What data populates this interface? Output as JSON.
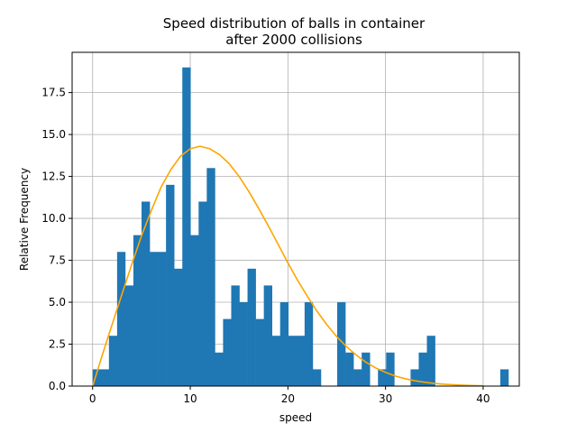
{
  "chart_data": {
    "type": "bar",
    "title": [
      "Speed distribution of balls in container",
      "after 2000 collisions"
    ],
    "xlabel": "speed",
    "ylabel": "Relative Frequency",
    "xlim": [
      -2.1,
      43.7
    ],
    "ylim": [
      0,
      19.9
    ],
    "xticks": [
      0,
      10,
      20,
      30,
      40
    ],
    "xtick_labels": [
      "0",
      "10",
      "20",
      "30",
      "40"
    ],
    "yticks": [
      0,
      2.5,
      5,
      7.5,
      10,
      12.5,
      15,
      17.5
    ],
    "ytick_labels": [
      "0.0",
      "2.5",
      "5.0",
      "7.5",
      "10.0",
      "12.5",
      "15.0",
      "17.5"
    ],
    "grid": true,
    "bar_color": "#1f77b4",
    "curve_color": "#ffa500",
    "histogram": {
      "bin_start": 0.0,
      "bin_width": 0.835,
      "counts": [
        1,
        1,
        3,
        8,
        6,
        9,
        11,
        8,
        8,
        12,
        7,
        19,
        9,
        11,
        13,
        2,
        4,
        6,
        5,
        7,
        4,
        6,
        3,
        5,
        3,
        3,
        5,
        1,
        0,
        0,
        5,
        2,
        1,
        2,
        0,
        1,
        2,
        0,
        0,
        1,
        2,
        3,
        0,
        0,
        0,
        0,
        0,
        0,
        0,
        0,
        1
      ]
    },
    "series": [
      {
        "type": "line",
        "x": [
          0,
          1,
          2,
          3,
          4,
          5,
          6,
          7,
          8,
          9,
          10,
          11,
          12,
          13,
          14,
          15,
          16,
          17,
          18,
          19,
          20,
          21,
          22,
          23,
          24,
          25,
          26,
          27,
          28,
          29,
          30,
          31,
          32,
          33,
          34,
          35,
          36,
          37,
          38,
          39,
          40
        ],
        "values": [
          0,
          1.87,
          3.68,
          5.47,
          7.25,
          8.95,
          10.45,
          11.85,
          12.9,
          13.7,
          14.15,
          14.3,
          14.15,
          13.8,
          13.25,
          12.5,
          11.6,
          10.6,
          9.55,
          8.45,
          7.35,
          6.3,
          5.35,
          4.45,
          3.65,
          2.95,
          2.35,
          1.85,
          1.42,
          1.08,
          0.82,
          0.6,
          0.44,
          0.32,
          0.23,
          0.16,
          0.11,
          0.08,
          0.05,
          0.03,
          0.02
        ]
      }
    ]
  }
}
